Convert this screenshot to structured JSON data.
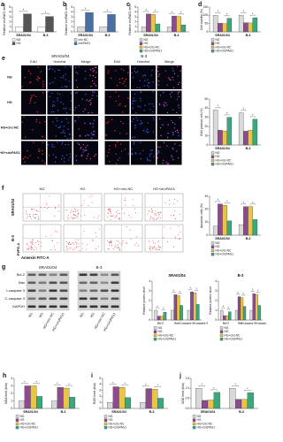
{
  "chart_data": [
    {
      "type": "bar",
      "panel": "a",
      "y_label": "Relative circPAG1 level",
      "categories": [
        "SRA01/04",
        "B-3"
      ],
      "sig": "*",
      "series": [
        {
          "name": "NG",
          "color": "#ffffff",
          "values": [
            1,
            1
          ]
        },
        {
          "name": "HG",
          "color": "#555555",
          "values": [
            3.6,
            3.1
          ]
        }
      ],
      "ylim": [
        0,
        5
      ],
      "yticks": [
        0,
        1,
        2,
        3,
        4,
        5
      ]
    },
    {
      "type": "bar",
      "panel": "b",
      "y_label": "Relative circPAG1 level",
      "categories": [
        "SRA01/04",
        "B-3"
      ],
      "sig": "*",
      "series": [
        {
          "name": "circ-NC",
          "color": "#dddddd",
          "values": [
            1,
            1
          ]
        },
        {
          "name": "circPAG1",
          "color": "#4a6fa5",
          "values": [
            3.9,
            3.5
          ]
        }
      ],
      "ylim": [
        0,
        5
      ],
      "yticks": [
        0,
        1,
        2,
        3,
        4,
        5
      ]
    },
    {
      "type": "bar",
      "panel": "c",
      "y_label": "Relative circPAG1 level",
      "categories": [
        "SRA01/04",
        "B-3"
      ],
      "sig": "*",
      "series": [
        {
          "name": "NG",
          "color": "#d9d9d9",
          "values": [
            1,
            1
          ]
        },
        {
          "name": "HG",
          "color": "#8e4a8f",
          "values": [
            3.6,
            3.2
          ]
        },
        {
          "name": "HG+circ-NC",
          "color": "#e8c547",
          "values": [
            3.5,
            3.1
          ]
        },
        {
          "name": "HG+circPAG1",
          "color": "#3aa87a",
          "values": [
            1.6,
            1.4
          ]
        }
      ],
      "ylim": [
        0,
        5
      ],
      "yticks": [
        0,
        1,
        2,
        3,
        4,
        5
      ]
    },
    {
      "type": "bar",
      "panel": "d",
      "y_label": "Cell viability (%)",
      "categories": [
        "SRA01/04",
        "B-3"
      ],
      "sig": "*",
      "series": [
        {
          "name": "NG",
          "color": "#d9d9d9",
          "values": [
            100,
            100
          ]
        },
        {
          "name": "HG",
          "color": "#8e4a8f",
          "values": [
            52,
            55
          ]
        },
        {
          "name": "HG+circ-NC",
          "color": "#e8c547",
          "values": [
            50,
            54
          ]
        },
        {
          "name": "HG+circPAG1",
          "color": "#3aa87a",
          "values": [
            82,
            85
          ]
        }
      ],
      "ylim": [
        0,
        150
      ],
      "yticks": [
        0,
        50,
        100,
        150
      ]
    },
    {
      "type": "bar",
      "y_label": "EdU positive cell (%)",
      "categories": [
        "SRA01/04",
        "B-3"
      ],
      "sig": "*",
      "series": [
        {
          "name": "NG",
          "color": "#d9d9d9",
          "values": [
            38,
            35
          ]
        },
        {
          "name": "HG",
          "color": "#8e4a8f",
          "values": [
            16,
            15
          ]
        },
        {
          "name": "HG+circ-NC",
          "color": "#e8c547",
          "values": [
            15,
            16
          ]
        },
        {
          "name": "HG+circPAG1",
          "color": "#3aa87a",
          "values": [
            30,
            28
          ]
        }
      ],
      "ylim": [
        0,
        50
      ],
      "yticks": [
        0,
        10,
        20,
        30,
        40,
        50
      ]
    },
    {
      "type": "bar",
      "y_label": "Apoptotic cells (%)",
      "categories": [
        "SRA01/04",
        "B-3"
      ],
      "sig": "*",
      "series": [
        {
          "name": "NG",
          "color": "#d9d9d9",
          "values": [
            7,
            8
          ]
        },
        {
          "name": "HG",
          "color": "#8e4a8f",
          "values": [
            24,
            22
          ]
        },
        {
          "name": "HG+circ-NC",
          "color": "#e8c547",
          "values": [
            23,
            22
          ]
        },
        {
          "name": "HG+circPAG1",
          "color": "#3aa87a",
          "values": [
            11,
            12
          ]
        }
      ],
      "ylim": [
        0,
        30
      ],
      "yticks": [
        0,
        10,
        20,
        30
      ]
    },
    {
      "type": "bar",
      "title": "SRA01/04",
      "y_label": "Relative protein level",
      "categories": [
        "Bcl-2",
        "Bax",
        "C-caspase 3/t-caspase 3"
      ],
      "sig": "*",
      "series": [
        {
          "name": "NG",
          "color": "#d9d9d9",
          "values": [
            1,
            1,
            1
          ]
        },
        {
          "name": "HG",
          "color": "#8e4a8f",
          "values": [
            0.4,
            2.6,
            2.9
          ]
        },
        {
          "name": "HG+circ-NC",
          "color": "#e8c547",
          "values": [
            0.4,
            2.5,
            2.8
          ]
        },
        {
          "name": "HG+circPAG1",
          "color": "#3aa87a",
          "values": [
            0.8,
            1.5,
            1.6
          ]
        }
      ],
      "ylim": [
        0,
        4
      ],
      "yticks": [
        0,
        1,
        2,
        3,
        4
      ]
    },
    {
      "type": "bar",
      "title": "B-3",
      "y_label": "Relative protein level",
      "categories": [
        "Bcl-2",
        "Bax",
        "C-caspase 3/t-caspase 3"
      ],
      "sig": "*",
      "series": [
        {
          "name": "NG",
          "color": "#d9d9d9",
          "values": [
            1,
            1,
            1
          ]
        },
        {
          "name": "HG",
          "color": "#8e4a8f",
          "values": [
            0.45,
            2.4,
            2.7
          ]
        },
        {
          "name": "HG+circ-NC",
          "color": "#e8c547",
          "values": [
            0.45,
            2.3,
            2.6
          ]
        },
        {
          "name": "HG+circPAG1",
          "color": "#3aa87a",
          "values": [
            0.85,
            1.4,
            1.5
          ]
        }
      ],
      "ylim": [
        0,
        4
      ],
      "yticks": [
        0,
        1,
        2,
        3,
        4
      ]
    },
    {
      "type": "bar",
      "panel": "h",
      "y_label": "MDA level (fold)",
      "categories": [
        "SRA01/04",
        "B-3"
      ],
      "sig": "*",
      "series": [
        {
          "name": "NG",
          "color": "#d9d9d9",
          "values": [
            1,
            1
          ]
        },
        {
          "name": "HG",
          "color": "#8e4a8f",
          "values": [
            3,
            2.8
          ]
        },
        {
          "name": "HG+circ-NC",
          "color": "#e8c547",
          "values": [
            3,
            2.7
          ]
        },
        {
          "name": "HG+circPAG1",
          "color": "#3aa87a",
          "values": [
            1.6,
            1.5
          ]
        }
      ],
      "ylim": [
        0,
        4
      ],
      "yticks": [
        0,
        1,
        2,
        3,
        4
      ]
    },
    {
      "type": "bar",
      "panel": "i",
      "y_label": "ROS level (fold)",
      "categories": [
        "SRA01/04",
        "B-3"
      ],
      "sig": "*",
      "series": [
        {
          "name": "NG",
          "color": "#d9d9d9",
          "values": [
            1,
            1
          ]
        },
        {
          "name": "HG",
          "color": "#8e4a8f",
          "values": [
            3.6,
            3.3
          ]
        },
        {
          "name": "HG+circ-NC",
          "color": "#e8c547",
          "values": [
            3.5,
            3.2
          ]
        },
        {
          "name": "HG+circPAG1",
          "color": "#3aa87a",
          "values": [
            1.8,
            1.7
          ]
        }
      ],
      "ylim": [
        0,
        5
      ],
      "yticks": [
        0,
        1,
        2,
        3,
        4,
        5
      ]
    },
    {
      "type": "bar",
      "panel": "j",
      "y_label": "SOD level (fold)",
      "categories": [
        "SRA01/04",
        "B-3"
      ],
      "sig": "*",
      "series": [
        {
          "name": "NG",
          "color": "#d9d9d9",
          "values": [
            1,
            1
          ]
        },
        {
          "name": "HG",
          "color": "#8e4a8f",
          "values": [
            0.4,
            0.45
          ]
        },
        {
          "name": "HG+circ-NC",
          "color": "#e8c547",
          "values": [
            0.42,
            0.45
          ]
        },
        {
          "name": "HG+circPAG1",
          "color": "#3aa87a",
          "values": [
            0.8,
            0.78
          ]
        }
      ],
      "ylim": [
        0,
        1.5
      ],
      "yticks": [
        {
          "value": 0,
          "label": "0.0"
        },
        0.5,
        {
          "value": 1,
          "label": "1.0"
        },
        1.5
      ]
    }
  ],
  "panel_e": {
    "panel": "e",
    "cell_lines": [
      "SRA01/04",
      "B-3"
    ],
    "columns": [
      "EdU",
      "Hoechst",
      "Merge"
    ],
    "rows": [
      "NG",
      "HG",
      "HG+circ-NC",
      "HG+circPAG1"
    ]
  },
  "panel_f": {
    "panel": "f",
    "columns": [
      "NG",
      "HG",
      "HG+circ-NC",
      "HG+circPAG1"
    ],
    "rows": [
      "SRA01/04",
      "B-3"
    ],
    "y_label": "PI/PE-A",
    "x_label": "Annexin FITC-A"
  },
  "panel_g": {
    "panel": "g",
    "cell_lines": [
      "SRA01/04",
      "B-3"
    ],
    "proteins": [
      "Bcl-2",
      "Bax",
      "t-caspase 3",
      "C-caspase 3",
      "GAPDH"
    ],
    "lanes": [
      "NG",
      "HG",
      "HG+circ-NC",
      "HG+circPAG1"
    ]
  }
}
